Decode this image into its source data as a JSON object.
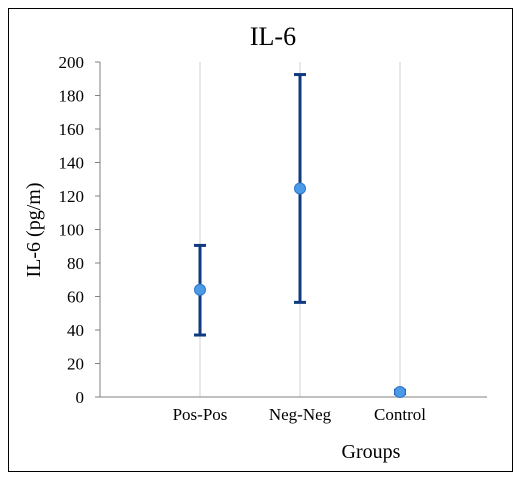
{
  "chart_data": {
    "type": "scatter",
    "title": "IL-6",
    "xlabel": "Groups",
    "ylabel": "IL-6 (pg/m)",
    "categories": [
      "Pos-Pos",
      "Neg-Neg",
      "Control"
    ],
    "series": [
      {
        "values": [
          64,
          124.5,
          3
        ],
        "error_low": [
          37,
          56.5,
          2
        ],
        "error_high": [
          90.5,
          192.5,
          4
        ]
      }
    ],
    "ylim": [
      0,
      200
    ],
    "yticks": [
      0,
      20,
      40,
      60,
      80,
      100,
      120,
      140,
      160,
      180,
      200
    ],
    "grid": "vertical",
    "legend": "none",
    "colors": {
      "marker": "#4a9ae8",
      "marker_edge": "#2e75c7",
      "error_bar": "#0f3a80",
      "gridline": "#d0d0d0",
      "axis": "#808080"
    }
  }
}
